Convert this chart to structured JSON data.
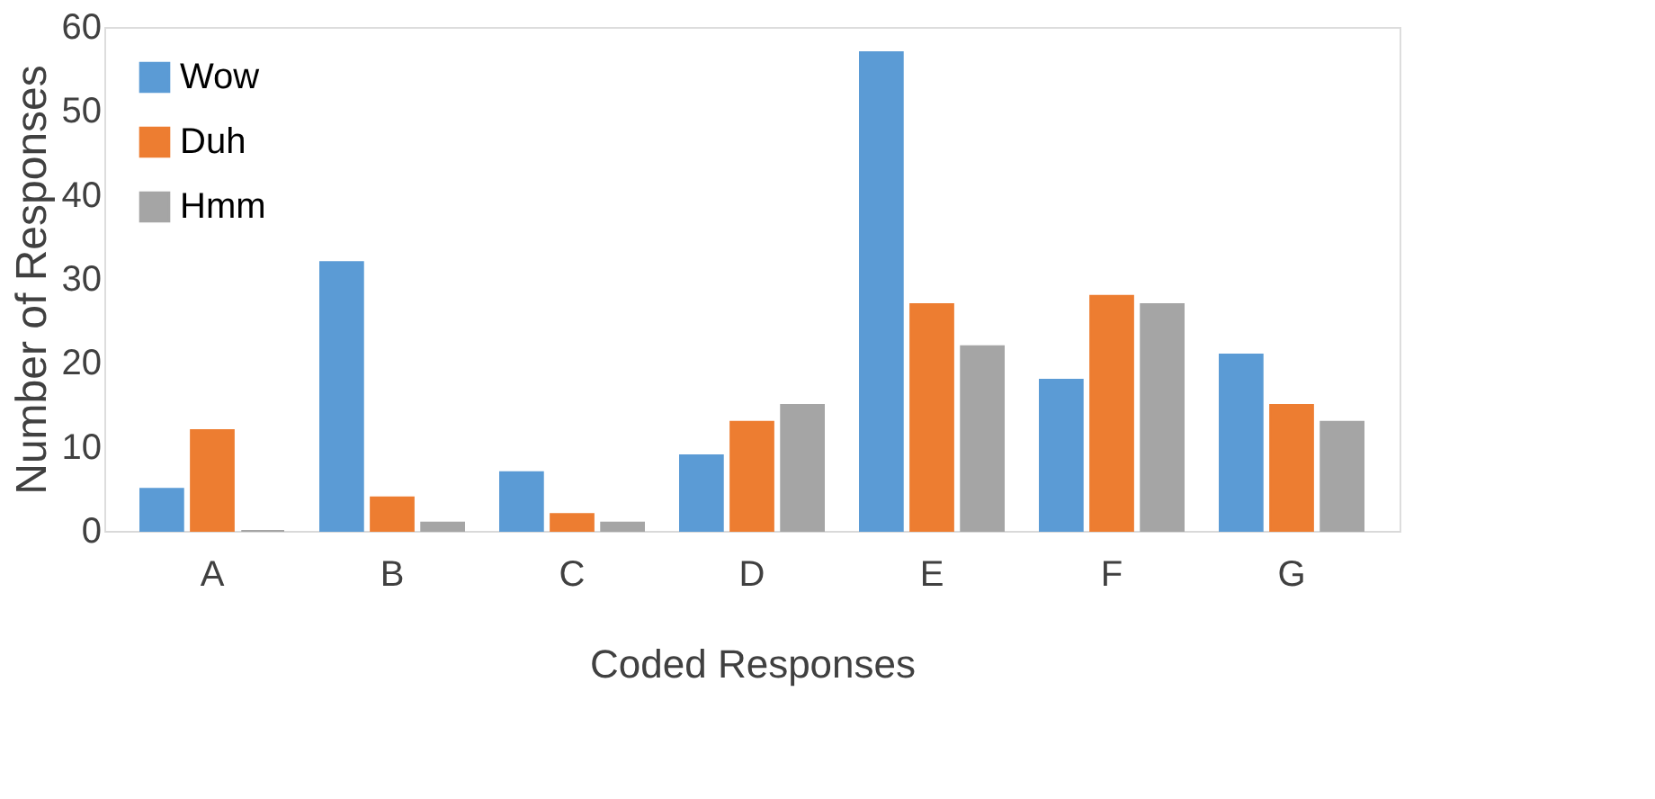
{
  "chart_data": {
    "type": "bar",
    "xlabel": "Coded Responses",
    "ylabel": "Number of Responses",
    "categories": [
      "A",
      "B",
      "C",
      "D",
      "E",
      "F",
      "G"
    ],
    "series": [
      {
        "name": "Wow",
        "color": "#5b9bd5",
        "values": [
          5,
          32,
          7,
          9,
          57,
          18,
          21
        ]
      },
      {
        "name": "Duh",
        "color": "#ed7d31",
        "values": [
          12,
          4,
          2,
          13,
          27,
          28,
          15
        ]
      },
      {
        "name": "Hmm",
        "color": "#a5a5a5",
        "values": [
          0,
          1,
          1,
          15,
          22,
          27,
          13
        ]
      }
    ],
    "ylim": [
      0,
      60
    ],
    "yticks": [
      0,
      10,
      20,
      30,
      40,
      50,
      60
    ],
    "grid": false,
    "legend": "top left"
  }
}
